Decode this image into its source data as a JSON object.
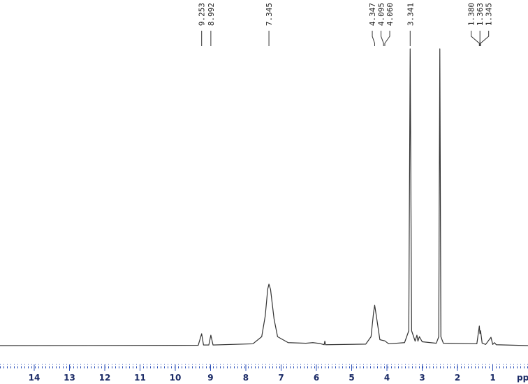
{
  "chart_data": {
    "type": "line",
    "x_label": "ppm",
    "xlim": [
      14.97,
      0
    ],
    "xticks": [
      14,
      13,
      12,
      11,
      10,
      9,
      8,
      7,
      6,
      5,
      4,
      3,
      2,
      1
    ],
    "ylim": [
      0,
      100
    ],
    "color": "#333333",
    "axis_color": "#2b4fb8",
    "series": [
      {
        "x": [
          14.97,
          9.35,
          9.253,
          9.2,
          9.05,
          8.992,
          8.93,
          7.8,
          7.55,
          7.45,
          7.38,
          7.345,
          7.3,
          7.2,
          7.1,
          6.8,
          6.3,
          6.1,
          5.9,
          5.78,
          5.76,
          5.74,
          4.6,
          4.45,
          4.38,
          4.347,
          4.3,
          4.2,
          4.1,
          4.06,
          3.95,
          3.5,
          3.38,
          3.341,
          3.3,
          3.2,
          3.15,
          3.12,
          3.08,
          3.0,
          2.6,
          2.53,
          2.5,
          2.47,
          2.4,
          1.45,
          1.38,
          1.363,
          1.345,
          1.3,
          1.2,
          1.05,
          1.0,
          0.95,
          0.9,
          0
        ],
        "values": [
          0,
          0.1,
          4,
          0.2,
          0.2,
          3.5,
          0.2,
          0.6,
          3,
          10,
          19,
          20.7,
          19,
          9,
          3,
          1,
          0.8,
          1,
          0.7,
          0.3,
          1.5,
          0.3,
          0.5,
          3,
          11,
          13.6,
          10,
          2,
          1.7,
          1.6,
          0.6,
          1,
          5,
          100,
          5,
          1.5,
          3.5,
          1.5,
          3,
          1.3,
          0.8,
          3,
          100,
          3,
          0.8,
          0.6,
          6.6,
          4,
          5,
          0.8,
          0.4,
          2.8,
          0.4,
          1,
          0.3,
          0
        ]
      }
    ],
    "peak_labels": [
      9.253,
      8.992,
      7.345,
      4.347,
      4.095,
      {
        "value": 4.06,
        "label": "4.060"
      },
      3.341,
      {
        "value": 1.38,
        "label": "1.380"
      },
      1.363,
      1.345
    ]
  }
}
